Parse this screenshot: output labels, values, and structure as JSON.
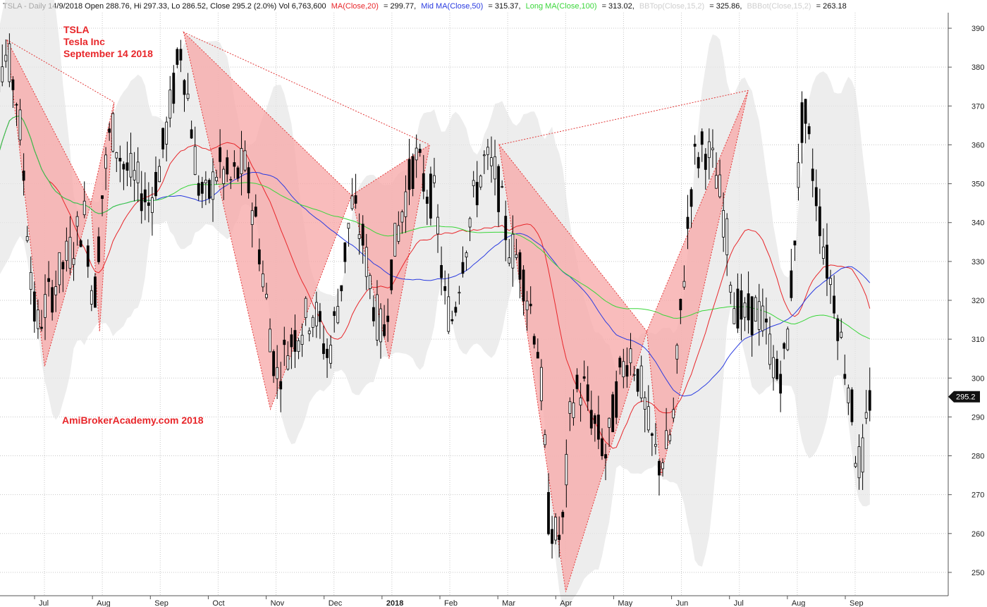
{
  "header": {
    "prefix": "TSLA - Daily 14/9/2018 Open 288.76, Hi 297.33, Lo 286.52, Close 295.2 (2.0%) Vol 6,763,600",
    "ma20_label": "MA(Close,20)",
    "ma20_value": "= 299.77,",
    "ma50_label": "Mid MA(Close,50)",
    "ma50_value": "= 315.37,",
    "ma100_label": "Long MA(Close,100)",
    "ma100_value": "= 313.02,",
    "bbtop_label": "BBTop(Close,15,2)",
    "bbtop_value": "= 325.86,",
    "bbbot_label": "BBBot(Close,15,2)",
    "bbbot_value": "= 263.18"
  },
  "annotations": {
    "ticker": "TSLA",
    "company": "Tesla Inc",
    "date": "September 14 2018",
    "watermark": "AmiBrokerAcademy.com  2018"
  },
  "colors": {
    "ma20": "#e8262a",
    "ma50": "#2a3be0",
    "ma100": "#3ad63a",
    "pattern_fill": "#f7a6a6",
    "pattern_stroke": "#e23a3a",
    "band": "#e6e6e6",
    "grid": "#c8c8c8",
    "annotation": "#e8262a",
    "last_price_bg": "#111111"
  },
  "chart_data": {
    "type": "candlestick",
    "title": "TSLA - Daily 14/9/2018",
    "ylim": [
      244,
      394
    ],
    "y_ticks": [
      250,
      260,
      270,
      280,
      290,
      300,
      310,
      320,
      330,
      340,
      350,
      360,
      370,
      380,
      390
    ],
    "last_price_label": "295.2",
    "last_price": 295.2,
    "x_range_months": [
      0,
      15.35
    ],
    "x_ticks": [
      {
        "label": "Jul",
        "m": 1
      },
      {
        "label": "Aug",
        "m": 2
      },
      {
        "label": "Sep",
        "m": 3
      },
      {
        "label": "Oct",
        "m": 4
      },
      {
        "label": "Nov",
        "m": 5
      },
      {
        "label": "Dec",
        "m": 6
      },
      {
        "label": "2018",
        "m": 7,
        "bold": true
      },
      {
        "label": "Feb",
        "m": 8
      },
      {
        "label": "Mar",
        "m": 9
      },
      {
        "label": "Apr",
        "m": 10
      },
      {
        "label": "May",
        "m": 11
      },
      {
        "label": "Jun",
        "m": 12
      },
      {
        "label": "Jul",
        "m": 13
      },
      {
        "label": "Aug",
        "m": 14
      },
      {
        "label": "Sep",
        "m": 15
      }
    ],
    "close_path": [
      [
        0.0,
        330
      ],
      [
        0.2,
        376
      ],
      [
        0.45,
        383
      ],
      [
        0.65,
        370
      ],
      [
        0.8,
        340
      ],
      [
        0.95,
        312
      ],
      [
        1.1,
        318
      ],
      [
        1.3,
        325
      ],
      [
        1.55,
        333
      ],
      [
        1.8,
        342
      ],
      [
        1.95,
        318
      ],
      [
        2.1,
        348
      ],
      [
        2.25,
        365
      ],
      [
        2.45,
        355
      ],
      [
        2.7,
        350
      ],
      [
        2.9,
        345
      ],
      [
        3.1,
        355
      ],
      [
        3.3,
        372
      ],
      [
        3.45,
        385
      ],
      [
        3.6,
        370
      ],
      [
        3.75,
        350
      ],
      [
        3.9,
        345
      ],
      [
        4.1,
        355
      ],
      [
        4.3,
        350
      ],
      [
        4.55,
        355
      ],
      [
        4.75,
        340
      ],
      [
        5.0,
        312
      ],
      [
        5.1,
        300
      ],
      [
        5.3,
        308
      ],
      [
        5.5,
        313
      ],
      [
        5.75,
        318
      ],
      [
        6.0,
        305
      ],
      [
        6.2,
        322
      ],
      [
        6.4,
        345
      ],
      [
        6.6,
        335
      ],
      [
        6.8,
        318
      ],
      [
        6.95,
        310
      ],
      [
        7.1,
        330
      ],
      [
        7.3,
        345
      ],
      [
        7.5,
        357
      ],
      [
        7.7,
        348
      ],
      [
        7.85,
        346
      ],
      [
        8.0,
        320
      ],
      [
        8.15,
        315
      ],
      [
        8.3,
        330
      ],
      [
        8.5,
        345
      ],
      [
        8.7,
        356
      ],
      [
        8.9,
        352
      ],
      [
        9.1,
        335
      ],
      [
        9.3,
        330
      ],
      [
        9.5,
        318
      ],
      [
        9.65,
        305
      ],
      [
        9.8,
        265
      ],
      [
        9.95,
        258
      ],
      [
        10.05,
        262
      ],
      [
        10.2,
        295
      ],
      [
        10.4,
        298
      ],
      [
        10.6,
        288
      ],
      [
        10.8,
        280
      ],
      [
        11.0,
        298
      ],
      [
        11.2,
        308
      ],
      [
        11.4,
        298
      ],
      [
        11.55,
        285
      ],
      [
        11.7,
        278
      ],
      [
        11.85,
        282
      ],
      [
        11.95,
        288
      ],
      [
        12.1,
        320
      ],
      [
        12.3,
        355
      ],
      [
        12.5,
        360
      ],
      [
        12.7,
        352
      ],
      [
        12.85,
        340
      ],
      [
        13.0,
        320
      ],
      [
        13.2,
        315
      ],
      [
        13.4,
        318
      ],
      [
        13.6,
        310
      ],
      [
        13.75,
        300
      ],
      [
        13.9,
        305
      ],
      [
        14.0,
        325
      ],
      [
        14.1,
        348
      ],
      [
        14.2,
        370
      ],
      [
        14.35,
        355
      ],
      [
        14.5,
        340
      ],
      [
        14.6,
        330
      ],
      [
        14.75,
        320
      ],
      [
        14.9,
        305
      ],
      [
        15.0,
        298
      ],
      [
        15.1,
        282
      ],
      [
        15.2,
        276
      ],
      [
        15.35,
        295
      ]
    ],
    "harmonic_patterns": [
      {
        "points": [
          [
            0.45,
            387
          ],
          [
            1.1,
            303
          ],
          [
            1.9,
            345
          ],
          [
            2.05,
            312
          ],
          [
            2.3,
            371
          ]
        ]
      },
      {
        "points": [
          [
            3.5,
            389
          ],
          [
            5.0,
            292
          ],
          [
            6.4,
            347
          ],
          [
            7.05,
            305
          ],
          [
            7.75,
            360
          ]
        ]
      },
      {
        "points": [
          [
            8.95,
            360
          ],
          [
            10.1,
            245
          ],
          [
            11.5,
            312
          ],
          [
            11.75,
            275
          ],
          [
            13.25,
            374
          ]
        ]
      }
    ],
    "candles_count": 250
  }
}
